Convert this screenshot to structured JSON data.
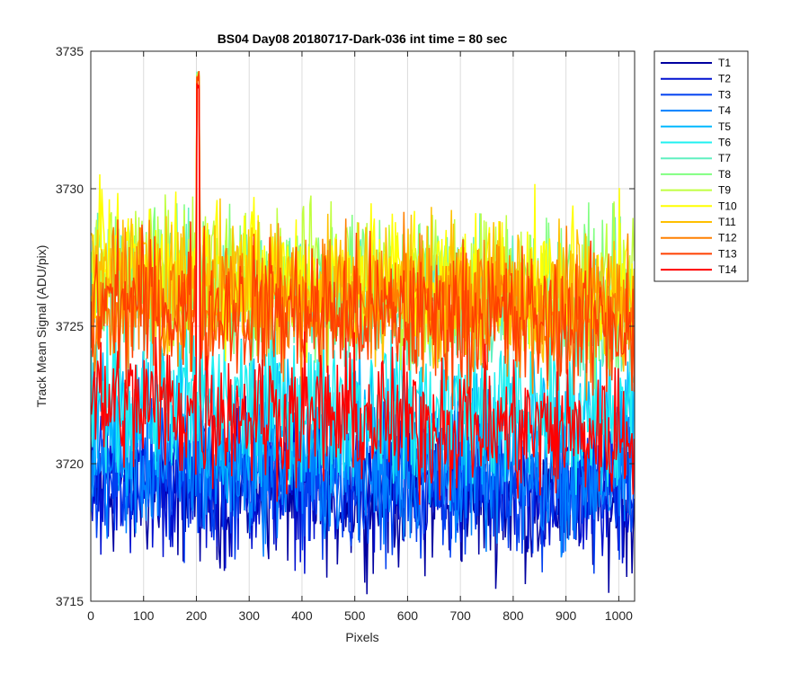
{
  "chart_data": {
    "type": "line",
    "title": "BS04 Day08 20180717-Dark-036 int time = 80 sec",
    "xlabel": "Pixels",
    "ylabel": "Track Mean Signal (ADU/pix)",
    "xlim": [
      0,
      1030
    ],
    "ylim": [
      3715,
      3735
    ],
    "xticks": [
      0,
      100,
      200,
      300,
      400,
      500,
      600,
      700,
      800,
      900,
      1000
    ],
    "yticks": [
      3715,
      3720,
      3725,
      3730,
      3735
    ],
    "grid": true,
    "legend_position": "outside-top-right",
    "x_range": [
      1,
      1030
    ],
    "noise_amplitude": 1.6,
    "series": [
      {
        "name": "T1",
        "color": "#0000A0",
        "mean_start": 3719.2,
        "mean_end": 3718.6
      },
      {
        "name": "T2",
        "color": "#0010D0",
        "mean_start": 3719.4,
        "mean_end": 3718.9
      },
      {
        "name": "T3",
        "color": "#0040F0",
        "mean_start": 3719.7,
        "mean_end": 3719.2
      },
      {
        "name": "T4",
        "color": "#0080FF",
        "mean_start": 3720.0,
        "mean_end": 3719.5
      },
      {
        "name": "T5",
        "color": "#00B8FF",
        "mean_start": 3721.8,
        "mean_end": 3721.2
      },
      {
        "name": "T6",
        "color": "#20F0F0",
        "mean_start": 3722.5,
        "mean_end": 3721.9
      },
      {
        "name": "T7",
        "color": "#60F0C0",
        "mean_start": 3726.5,
        "mean_end": 3725.6
      },
      {
        "name": "T8",
        "color": "#80FF80",
        "mean_start": 3726.9,
        "mean_end": 3726.0
      },
      {
        "name": "T9",
        "color": "#C0FF40",
        "mean_start": 3727.0,
        "mean_end": 3726.2
      },
      {
        "name": "T10",
        "color": "#FFFF00",
        "mean_start": 3727.2,
        "mean_end": 3726.3
      },
      {
        "name": "T11",
        "color": "#FFC000",
        "mean_start": 3726.8,
        "mean_end": 3726.0
      },
      {
        "name": "T12",
        "color": "#FF8000",
        "mean_start": 3726.2,
        "mean_end": 3725.4
      },
      {
        "name": "T13",
        "color": "#FF4000",
        "mean_start": 3725.8,
        "mean_end": 3725.0
      },
      {
        "name": "T14",
        "color": "#FF0000",
        "mean_start": 3722.2,
        "mean_end": 3721.0
      }
    ],
    "spike": {
      "x": 203,
      "y": 3734.3
    }
  }
}
